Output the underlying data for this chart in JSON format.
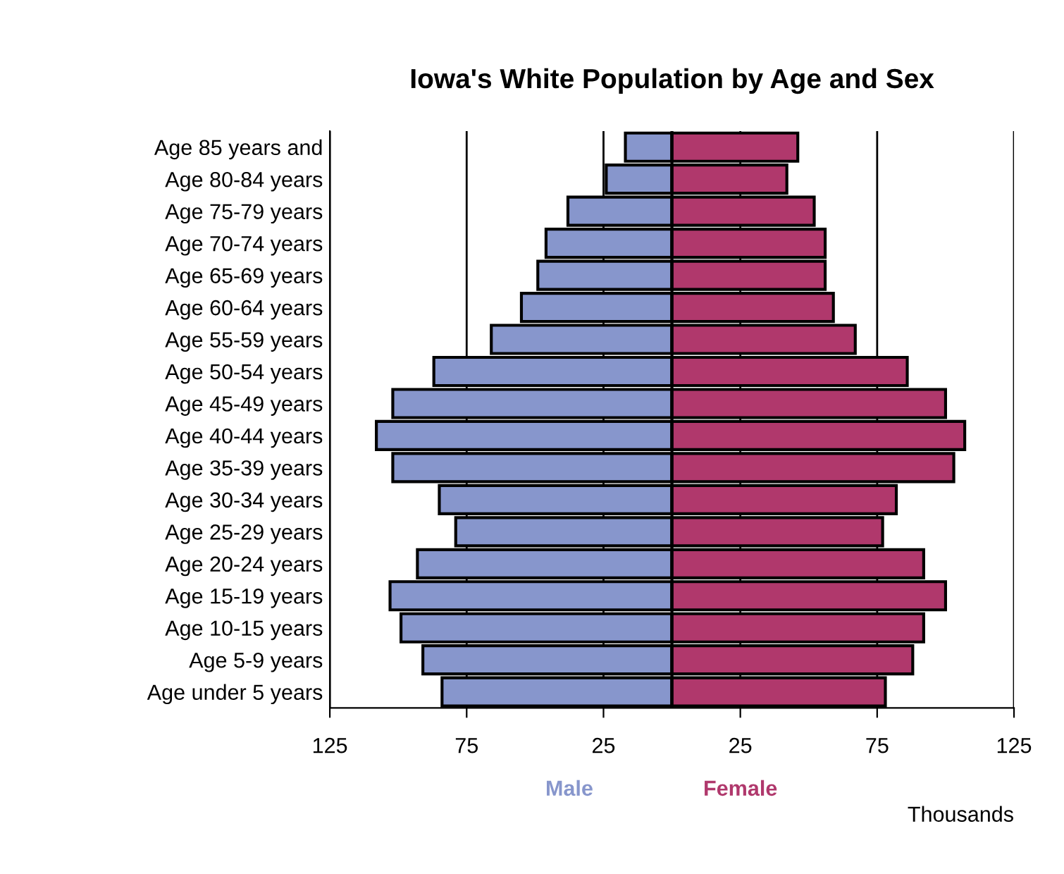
{
  "chart_data": {
    "type": "bar",
    "orientation": "horizontal",
    "title": "Iowa's White Population by Age and Sex",
    "xlabel": "Thousands",
    "categories": [
      "Age 85 years and",
      "Age 80-84 years",
      "Age 75-79 years",
      "Age 70-74 years",
      "Age 65-69 years",
      "Age 60-64 years",
      "Age 55-59 years",
      "Age 50-54 years",
      "Age 45-49 years",
      "Age 40-44 years",
      "Age 35-39 years",
      "Age 30-34 years",
      "Age 25-29 years",
      "Age 20-24 years",
      "Age 15-19 years",
      "Age 10-15 years",
      "Age 5-9 years",
      "Age under 5 years"
    ],
    "series": [
      {
        "name": "Male",
        "color": "#8796cc",
        "values": [
          -17,
          -24,
          -38,
          -46,
          -49,
          -55,
          -66,
          -87,
          -102,
          -108,
          -102,
          -85,
          -79,
          -93,
          -103,
          -99,
          -91,
          -84
        ]
      },
      {
        "name": "Female",
        "color": "#b0386c",
        "values": [
          46,
          42,
          52,
          56,
          56,
          59,
          67,
          86,
          100,
          107,
          103,
          82,
          77,
          92,
          100,
          92,
          88,
          78
        ]
      }
    ],
    "xlim": [
      -125,
      125
    ],
    "xticks": [
      {
        "value": -125,
        "label": "125"
      },
      {
        "value": -75,
        "label": "75"
      },
      {
        "value": -25,
        "label": "25"
      },
      25,
      75,
      125
    ],
    "grid": "x",
    "legend": "bottom",
    "stacked": true
  }
}
